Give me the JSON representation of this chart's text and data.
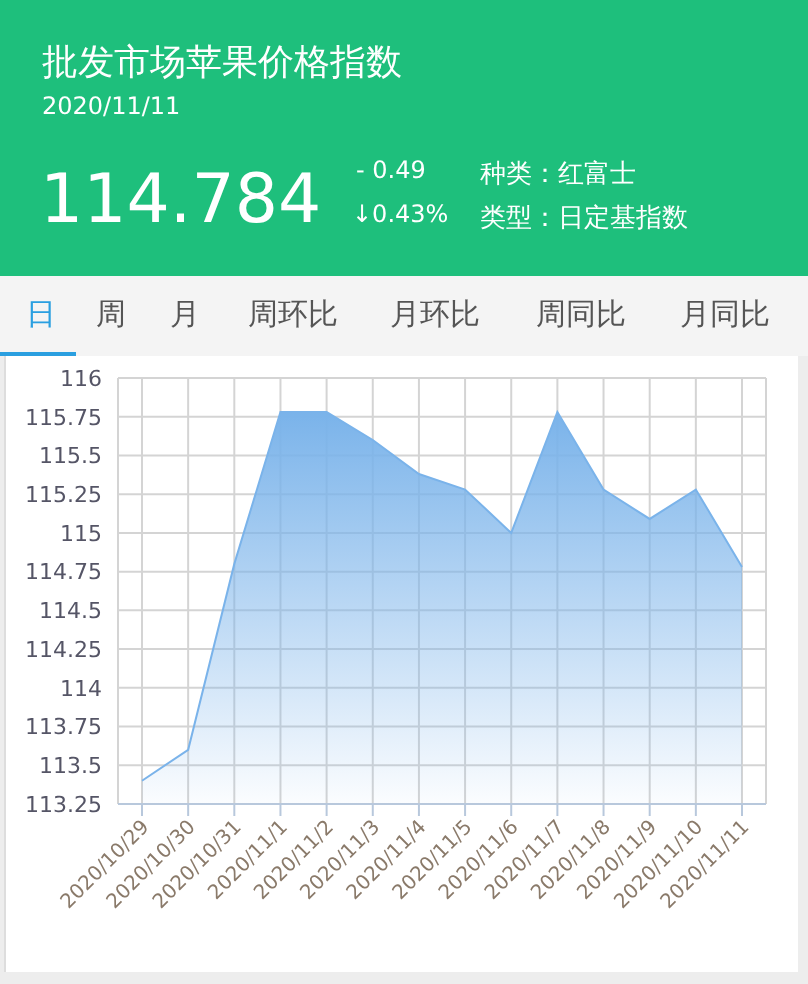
{
  "chart_data": {
    "type": "area",
    "title": "批发市场苹果价格指数",
    "subtitle": "2020/11/11",
    "annotations": [
      "114.784",
      "- 0.49",
      "↓0.43%",
      "种类：红富士",
      "类型：日定基指数",
      "日",
      "周",
      "月",
      "周环比",
      "月环比",
      "周同比",
      "月同比"
    ],
    "categories": [
      "2020/10/29",
      "2020/10/30",
      "2020/10/31",
      "2020/11/1",
      "2020/11/2",
      "2020/11/3",
      "2020/11/4",
      "2020/11/5",
      "2020/11/6",
      "2020/11/7",
      "2020/11/8",
      "2020/11/9",
      "2020/11/10",
      "2020/11/11"
    ],
    "series": [
      {
        "color": "#7ab3ea",
        "values": [
          113.4,
          113.6,
          114.8,
          115.78,
          115.78,
          115.6,
          115.38,
          115.28,
          115.0,
          115.78,
          115.28,
          115.09,
          115.28,
          114.78
        ]
      }
    ],
    "ylim": [
      113.25,
      116
    ],
    "yticks": [
      113.25,
      113.5,
      113.75,
      114,
      114.25,
      114.5,
      114.75,
      115,
      115.25,
      115.5,
      115.75,
      116
    ],
    "grid": true,
    "marker": "none"
  }
}
